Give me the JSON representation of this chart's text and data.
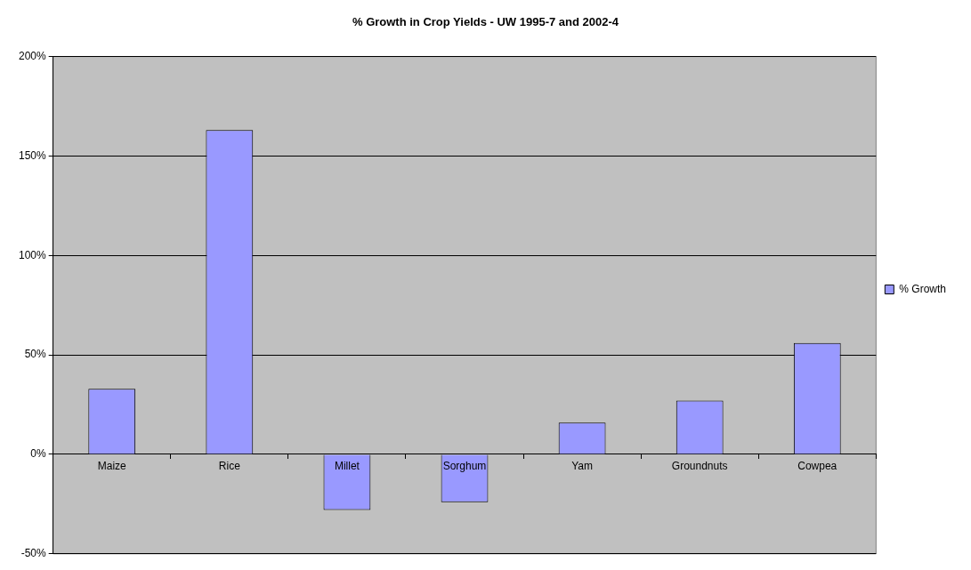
{
  "chart_data": {
    "type": "bar",
    "title": "% Growth in Crop Yields - UW 1995-7 and 2002-4",
    "categories": [
      "Maize",
      "Rice",
      "Millet",
      "Sorghum",
      "Yam",
      "Groundnuts",
      "Cowpea"
    ],
    "series": [
      {
        "name": "% Growth",
        "color": "#9999ff",
        "values": [
          33,
          163,
          -28,
          -24,
          16,
          27,
          56
        ]
      }
    ],
    "ylim": [
      -50,
      200
    ],
    "yticks": [
      {
        "value": -50,
        "label": "-50%"
      },
      {
        "value": 0,
        "label": "0%"
      },
      {
        "value": 50,
        "label": "50%"
      },
      {
        "value": 100,
        "label": "100%"
      },
      {
        "value": 150,
        "label": "150%"
      },
      {
        "value": 200,
        "label": "200%"
      }
    ],
    "grid": "y",
    "legend": "right"
  }
}
